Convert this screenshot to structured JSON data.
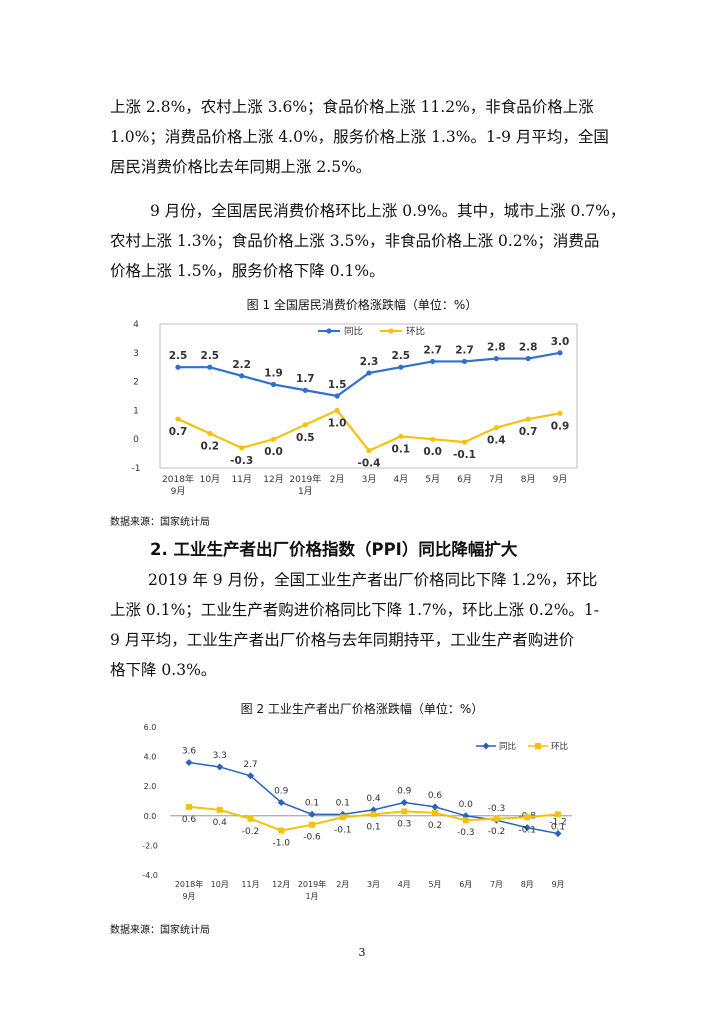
{
  "paragraphs": {
    "p1": [
      "上涨 2.8%，农村上涨 3.6%；食品价格上涨 11.2%，非食品价格上涨",
      "1.0%；消费品价格上涨 4.0%，服务价格上涨 1.3%。1-9 月平均，全国",
      "居民消费价格比去年同期上涨 2.5%。"
    ],
    "p2": [
      "9 月份，全国居民消费价格环比上涨 0.9%。其中，城市上涨 0.7%，",
      "农村上涨 1.3%；食品价格上涨 3.5%，非食品价格上涨 0.2%；消费品",
      "价格上涨 1.5%，服务价格下降 0.1%。"
    ],
    "p3": [
      "2019 年 9 月份，全国工业生产者出厂价格同比下降 1.2%，环比",
      "上涨 0.1%；工业生产者购进价格同比下降 1.7%，环比上涨 0.2%。1-",
      "9 月平均，工业生产者出厂价格与去年同期持平，工业生产者购进价",
      "格下降 0.3%。"
    ]
  },
  "section_title": "2. 工业生产者出厂价格指数（PPI）同比降幅扩大",
  "figure1": {
    "caption": "图 1   全国居民消费价格涨跌幅（单位：%）",
    "source": "数据来源：国家统计局"
  },
  "figure2": {
    "caption": "图 2   工业生产者出厂价格涨跌幅（单位：%）",
    "source": "数据来源：国家统计局"
  },
  "page_number": "3",
  "chart_data": [
    {
      "type": "line",
      "categories": [
        [
          "2018年",
          "9月"
        ],
        [
          "10月"
        ],
        [
          "11月"
        ],
        [
          "12月"
        ],
        [
          "2019年",
          "1月"
        ],
        [
          "2月"
        ],
        [
          "3月"
        ],
        [
          "4月"
        ],
        [
          "5月"
        ],
        [
          "6月"
        ],
        [
          "7月"
        ],
        [
          "8月"
        ],
        [
          "9月"
        ]
      ],
      "y_ticks": [
        "4",
        "3",
        "2",
        "1",
        "0",
        "-1"
      ],
      "ylim": [
        -1,
        4
      ],
      "legend_placement": "top-center",
      "series": [
        {
          "name": "同比",
          "color": "#2e6fd0",
          "marker": "circle",
          "values": [
            2.5,
            2.5,
            2.2,
            1.9,
            1.7,
            1.5,
            2.3,
            2.5,
            2.7,
            2.7,
            2.8,
            2.8,
            3.0
          ],
          "labels": [
            "2.5",
            "2.5",
            "2.2",
            "1.9",
            "1.7",
            "1.5",
            "2.3",
            "2.5",
            "2.7",
            "2.7",
            "2.8",
            "2.8",
            "3.0"
          ]
        },
        {
          "name": "环比",
          "color": "#f4c20d",
          "marker": "circle",
          "values": [
            0.7,
            0.2,
            -0.3,
            0.0,
            0.5,
            1.0,
            -0.4,
            0.1,
            0.0,
            -0.1,
            0.4,
            0.7,
            0.9
          ],
          "labels": [
            "0.7",
            "0.2",
            "-0.3",
            "0.0",
            "0.5",
            "1.0",
            "-0.4",
            "0.1",
            "0.0",
            "-0.1",
            "0.4",
            "0.7",
            "0.9"
          ]
        }
      ]
    },
    {
      "type": "line",
      "categories": [
        [
          "2018年",
          "9月"
        ],
        [
          "10月"
        ],
        [
          "11月"
        ],
        [
          "12月"
        ],
        [
          "2019年",
          "1月"
        ],
        [
          "2月"
        ],
        [
          "3月"
        ],
        [
          "4月"
        ],
        [
          "5月"
        ],
        [
          "6月"
        ],
        [
          "7月"
        ],
        [
          "8月"
        ],
        [
          "9月"
        ]
      ],
      "y_ticks": [
        "6.0",
        "4.0",
        "2.0",
        "0.0",
        "-2.0",
        "-4.0"
      ],
      "ylim": [
        -4,
        6
      ],
      "legend_placement": "top-right",
      "series": [
        {
          "name": "同比",
          "color": "#2a63b8",
          "marker": "diamond",
          "values": [
            3.6,
            3.3,
            2.7,
            0.9,
            0.1,
            0.1,
            0.4,
            0.9,
            0.6,
            0.0,
            -0.3,
            -0.8,
            -1.2
          ],
          "labels": [
            "3.6",
            "3.3",
            "2.7",
            "0.9",
            "0.1",
            "0.1",
            "0.4",
            "0.9",
            "0.6",
            "0.0",
            "-0.3",
            "-0.8",
            "-1.2"
          ]
        },
        {
          "name": "环比",
          "color": "#f4c20d",
          "marker": "square",
          "values": [
            0.6,
            0.4,
            -0.2,
            -1.0,
            -0.6,
            -0.1,
            0.1,
            0.3,
            0.2,
            -0.3,
            -0.2,
            -0.1,
            0.1
          ],
          "labels": [
            "0.6",
            "0.4",
            "-0.2",
            "-1.0",
            "-0.6",
            "-0.1",
            "0.1",
            "0.3",
            "0.2",
            "-0.3",
            "-0.2",
            "-0.1",
            "0.1"
          ]
        }
      ]
    }
  ]
}
